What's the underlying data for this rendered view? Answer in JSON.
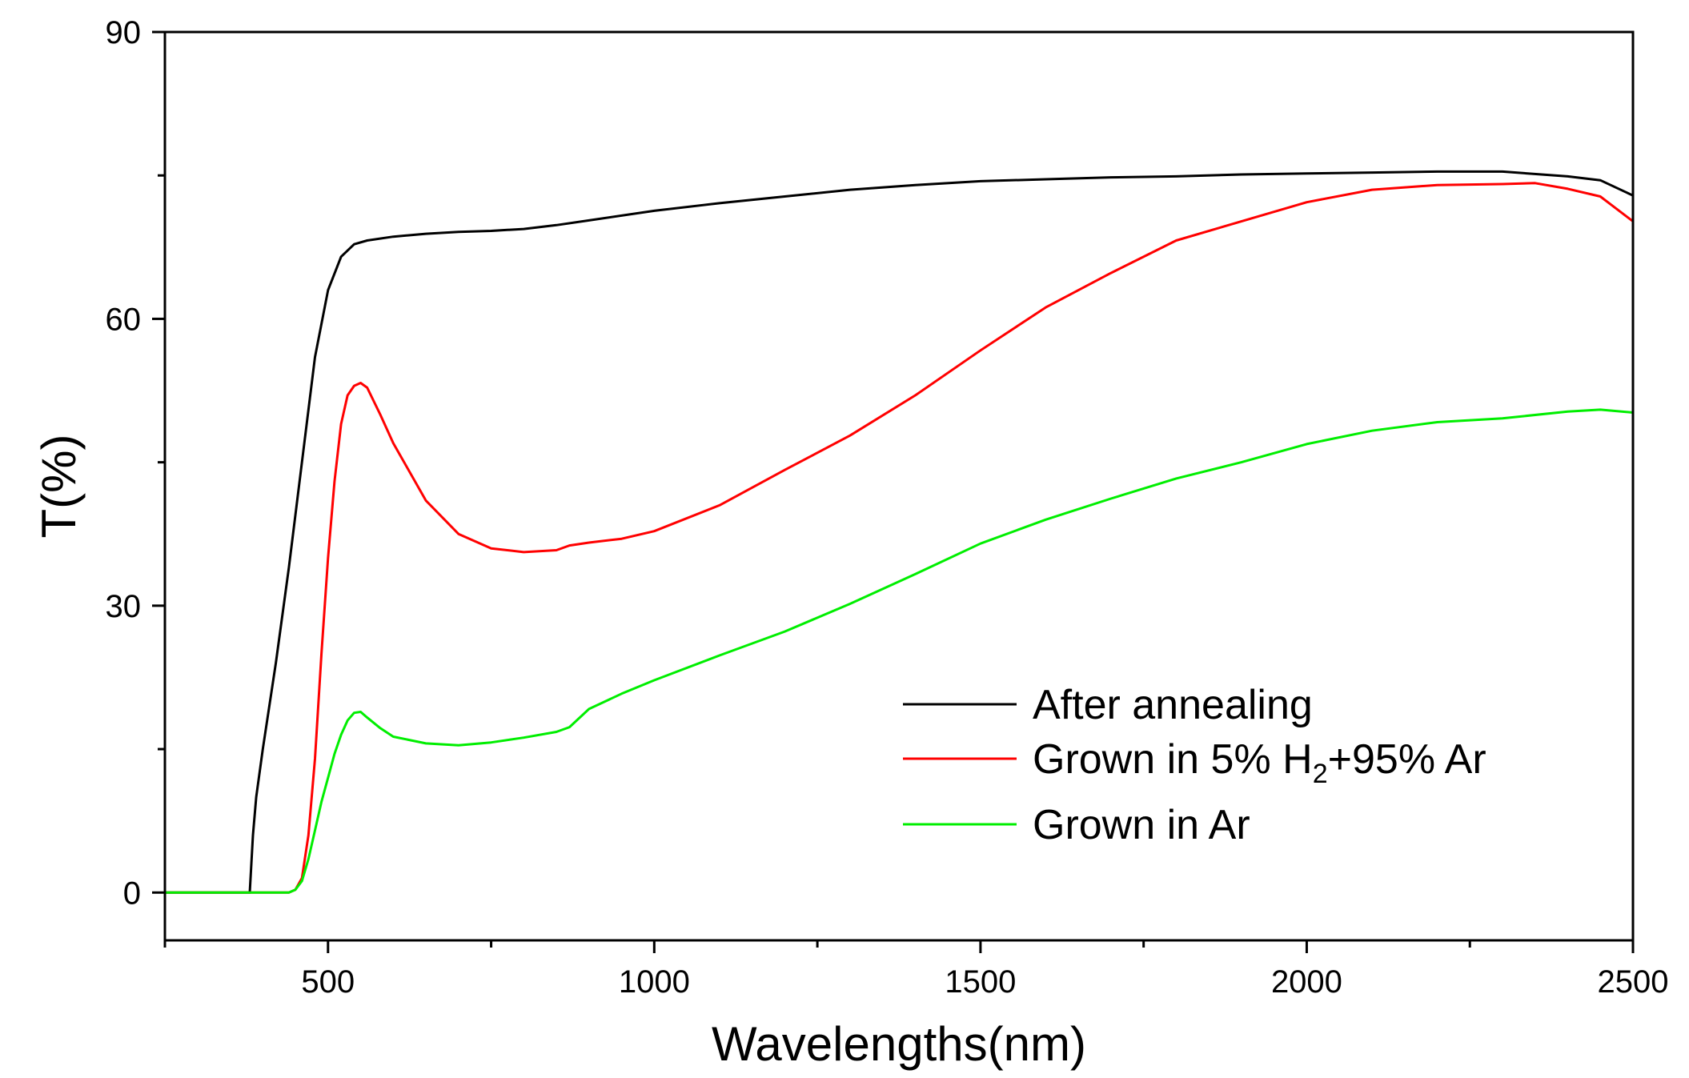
{
  "chart_data": {
    "type": "line",
    "title": "",
    "xlabel": "Wavelengths(nm)",
    "ylabel": "T(%)",
    "xlim": [
      250,
      2500
    ],
    "ylim": [
      -5,
      90
    ],
    "xticks": [
      500,
      1000,
      1500,
      2000,
      2500
    ],
    "yticks": [
      0,
      30,
      60,
      90
    ],
    "x_minor_step": 250,
    "y_minor_step": 15,
    "grid": false,
    "legend_position": "bottom-right",
    "series": [
      {
        "name": "After annealing",
        "legend_text": "After annealing",
        "color": "#000000",
        "x": [
          250,
          380,
          385,
          390,
          400,
          420,
          440,
          460,
          480,
          500,
          520,
          540,
          560,
          600,
          650,
          700,
          750,
          800,
          850,
          900,
          1000,
          1100,
          1200,
          1300,
          1400,
          1500,
          1600,
          1700,
          1800,
          1900,
          2000,
          2100,
          2200,
          2300,
          2400,
          2450,
          2500
        ],
        "y": [
          0,
          0,
          6,
          10,
          15,
          24,
          34,
          45,
          56,
          63,
          66.5,
          67.8,
          68.2,
          68.6,
          68.9,
          69.1,
          69.2,
          69.4,
          69.8,
          70.3,
          71.3,
          72.1,
          72.8,
          73.5,
          74,
          74.4,
          74.6,
          74.8,
          74.9,
          75.1,
          75.2,
          75.3,
          75.4,
          75.4,
          74.9,
          74.5,
          72.9
        ]
      },
      {
        "name": "Grown in 5% H2+95% Ar",
        "legend_text": {
          "main": "Grown in 5% H",
          "sub": "2",
          "rest": "+95% Ar"
        },
        "color": "#ff0000",
        "x": [
          250,
          440,
          450,
          460,
          470,
          480,
          490,
          500,
          510,
          520,
          530,
          540,
          550,
          560,
          580,
          600,
          650,
          700,
          750,
          800,
          850,
          870,
          900,
          950,
          1000,
          1100,
          1200,
          1300,
          1400,
          1500,
          1600,
          1700,
          1800,
          1900,
          2000,
          2100,
          2200,
          2300,
          2350,
          2400,
          2450,
          2500
        ],
        "y": [
          0,
          0,
          0.3,
          1.5,
          6,
          14,
          25,
          35,
          43,
          49,
          52,
          53,
          53.3,
          52.8,
          50,
          47,
          41,
          37.5,
          36,
          35.6,
          35.8,
          36.3,
          36.6,
          37,
          37.8,
          40.5,
          44.2,
          47.8,
          52,
          56.7,
          61.2,
          64.8,
          68.2,
          70.2,
          72.2,
          73.5,
          74,
          74.1,
          74.2,
          73.6,
          72.8,
          70.2
        ]
      },
      {
        "name": "Grown in Ar",
        "legend_text": "Grown in Ar",
        "color": "#00ee00",
        "x": [
          250,
          440,
          450,
          460,
          470,
          480,
          490,
          500,
          510,
          520,
          530,
          540,
          550,
          560,
          580,
          600,
          650,
          700,
          750,
          800,
          850,
          870,
          900,
          950,
          1000,
          1100,
          1200,
          1300,
          1400,
          1500,
          1600,
          1700,
          1800,
          1900,
          2000,
          2100,
          2200,
          2300,
          2400,
          2450,
          2500
        ],
        "y": [
          0,
          0,
          0.3,
          1.2,
          3.5,
          6.5,
          9.5,
          12,
          14.5,
          16.5,
          18,
          18.8,
          18.9,
          18.3,
          17.2,
          16.3,
          15.6,
          15.4,
          15.7,
          16.2,
          16.8,
          17.3,
          19.2,
          20.8,
          22.2,
          24.8,
          27.3,
          30.2,
          33.3,
          36.5,
          39,
          41.2,
          43.3,
          45,
          46.9,
          48.3,
          49.2,
          49.6,
          50.3,
          50.5,
          50.2
        ]
      }
    ]
  }
}
